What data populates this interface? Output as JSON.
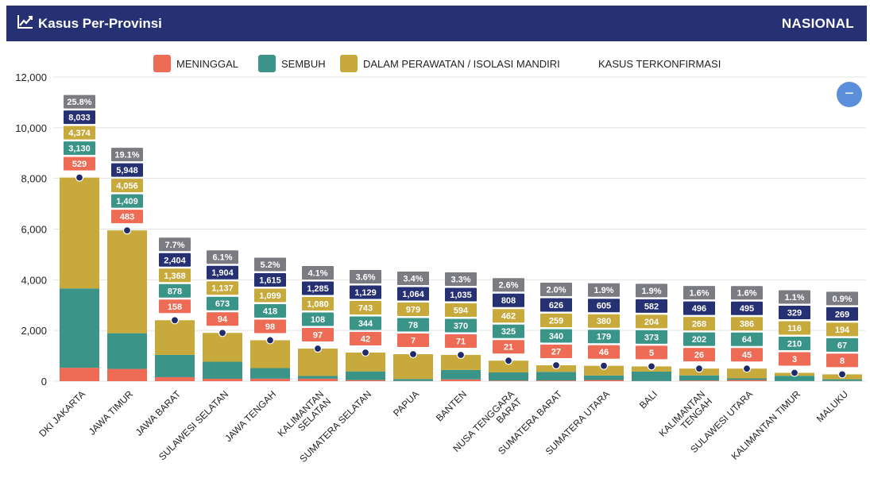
{
  "header": {
    "title": "Kasus Per-Provinsi",
    "scope": "NASIONAL",
    "icon": "line-chart-icon"
  },
  "toolbar": {
    "collapse_label": "−",
    "collapse_icon": "minus-icon"
  },
  "colors": {
    "header_bg": "#263174",
    "meninggal": "#ee6b55",
    "sembuh": "#3a9488",
    "perawatan": "#c8aa3c",
    "terkonfirmasi": "#263174",
    "percent": "#7b7b82",
    "dot": "#1f2a6b",
    "button": "#5b8fdc"
  },
  "legend": [
    {
      "key": "meninggal",
      "label": "MENINGGAL"
    },
    {
      "key": "sembuh",
      "label": "SEMBUH"
    },
    {
      "key": "perawatan",
      "label": "DALAM PERAWATAN / ISOLASI MANDIRI"
    },
    {
      "key": "terkonfirmasi",
      "label": "KASUS TERKONFIRMASI"
    }
  ],
  "chart_data": {
    "type": "bar",
    "stacked": true,
    "ylim": [
      0,
      12000
    ],
    "yticks": [
      "0",
      "2,000",
      "4,000",
      "6,000",
      "8,000",
      "10,000",
      "12,000"
    ],
    "grid": true,
    "legend_position": "top",
    "categories": [
      "DKI JAKARTA",
      "JAWA TIMUR",
      "JAWA BARAT",
      "SULAWESI SELATAN",
      "JAWA TENGAH",
      "KALIMANTAN SELATAN",
      "SUMATERA SELATAN",
      "PAPUA",
      "BANTEN",
      "NUSA TENGGARA BARAT",
      "SUMATERA BARAT",
      "SUMATERA UTARA",
      "BALI",
      "KALIMANTAN TENGAH",
      "SULAWESI UTARA",
      "KALIMANTAN TIMUR",
      "MALUKU"
    ],
    "category_lines": [
      [
        "DKI JAKARTA"
      ],
      [
        "JAWA TIMUR"
      ],
      [
        "JAWA BARAT"
      ],
      [
        "SULAWESI SELATAN"
      ],
      [
        "JAWA TENGAH"
      ],
      [
        "KALIMANTAN",
        "SELATAN"
      ],
      [
        "SUMATERA SELATAN"
      ],
      [
        "PAPUA"
      ],
      [
        "BANTEN"
      ],
      [
        "NUSA TENGGARA",
        "BARAT"
      ],
      [
        "SUMATERA BARAT"
      ],
      [
        "SUMATERA UTARA"
      ],
      [
        "BALI"
      ],
      [
        "KALIMANTAN",
        "TENGAH"
      ],
      [
        "SULAWESI UTARA"
      ],
      [
        "KALIMANTAN TIMUR"
      ],
      [
        "MALUKU"
      ]
    ],
    "series": [
      {
        "name": "MENINGGAL",
        "values": [
          529,
          483,
          158,
          94,
          98,
          97,
          42,
          7,
          71,
          21,
          27,
          46,
          5,
          26,
          45,
          3,
          8
        ]
      },
      {
        "name": "SEMBUH",
        "values": [
          3130,
          1409,
          878,
          673,
          418,
          108,
          344,
          78,
          370,
          325,
          340,
          179,
          373,
          202,
          64,
          210,
          67
        ]
      },
      {
        "name": "DALAM PERAWATAN / ISOLASI MANDIRI",
        "values": [
          4374,
          4056,
          1368,
          1137,
          1099,
          1080,
          743,
          979,
          594,
          462,
          259,
          380,
          204,
          268,
          386,
          116,
          194
        ]
      }
    ],
    "totals": [
      8033,
      5948,
      2404,
      1904,
      1615,
      1285,
      1129,
      1064,
      1035,
      808,
      626,
      605,
      582,
      496,
      495,
      329,
      269
    ],
    "percent_labels": [
      "25.8%",
      "19.1%",
      "7.7%",
      "6.1%",
      "5.2%",
      "4.1%",
      "3.6%",
      "3.4%",
      "3.3%",
      "2.6%",
      "2.0%",
      "1.9%",
      "1.9%",
      "1.6%",
      "1.6%",
      "1.1%",
      "0.9%"
    ]
  }
}
